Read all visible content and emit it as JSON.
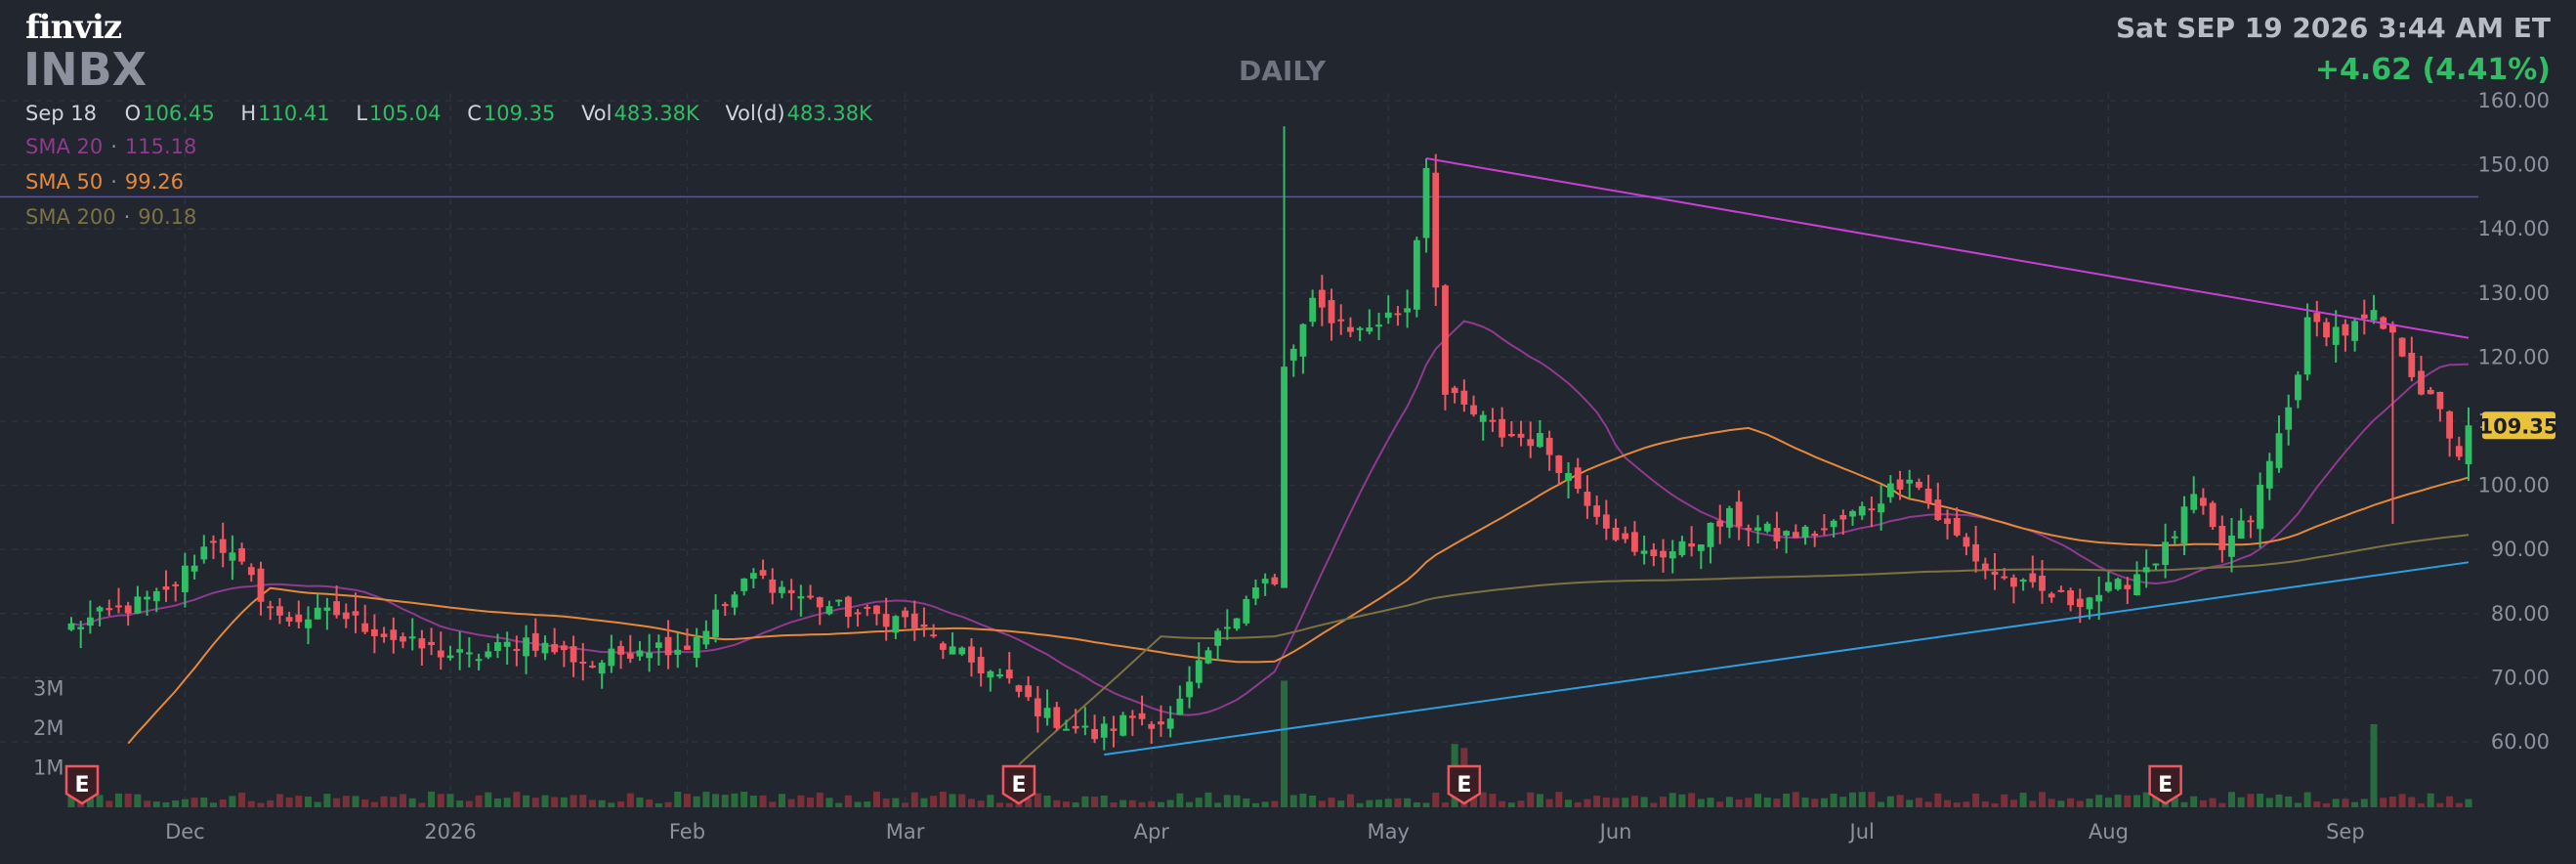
{
  "header": {
    "logo": "finviz",
    "ticker": "INBX",
    "period": "DAILY",
    "datetime": "Sat SEP 19 2026 3:44 AM ET",
    "change": "+4.62 (4.41%)"
  },
  "ohlc": {
    "date": "Sep 18",
    "o_label": "O",
    "o": "106.45",
    "h_label": "H",
    "h": "110.41",
    "l_label": "L",
    "l": "105.04",
    "c_label": "C",
    "c": "109.35",
    "vol_label": "Vol",
    "vol": "483.38K",
    "vold_label": "Vol(d)",
    "vold": "483.38K"
  },
  "sma": [
    {
      "label": "SMA 20",
      "value": "115.18",
      "color": "#8e3a8e"
    },
    {
      "label": "SMA 50",
      "value": "99.26",
      "color": "#e6883a"
    },
    {
      "label": "SMA 200",
      "value": "90.18",
      "color": "#7d7244"
    }
  ],
  "colors": {
    "up": "#2fbe64",
    "down": "#f0565f",
    "background": "#22262f",
    "resistance_line": "#c83fd1",
    "support_line": "#2e9fe0",
    "horizontal_line": "#5b4fc4",
    "last_price_badge": "#e8c23a"
  },
  "chart_data": {
    "type": "candlestick",
    "y_axis": {
      "min": 50,
      "max": 160,
      "ticks": [
        "60.00",
        "70.00",
        "80.00",
        "90.00",
        "100.00",
        "110.00",
        "120.00",
        "130.00",
        "140.00",
        "150.00",
        "160.00"
      ]
    },
    "volume_axis_labels": [
      "1M",
      "2M",
      "3M"
    ],
    "x_labels": [
      "Dec",
      "2026",
      "Feb",
      "Mar",
      "Apr",
      "May",
      "Jun",
      "Jul",
      "Aug",
      "Sep"
    ],
    "x_label_index": [
      12,
      40,
      65,
      88,
      114,
      139,
      163,
      189,
      215,
      240
    ],
    "last_price": "109.35",
    "last_price_value": 109.35,
    "earnings_marker": "E",
    "earnings_index": [
      0,
      100,
      147,
      221
    ],
    "horizontal_line_value": 145,
    "trend_lines": [
      {
        "from": [
          143,
          151
        ],
        "to": [
          253,
          123
        ]
      },
      {
        "from": [
          109,
          58
        ],
        "to": [
          253,
          88
        ]
      }
    ],
    "price_waypoints": [
      [
        0,
        78
      ],
      [
        6,
        81
      ],
      [
        10,
        83
      ],
      [
        15,
        92
      ],
      [
        18,
        87
      ],
      [
        22,
        79
      ],
      [
        28,
        80
      ],
      [
        36,
        75
      ],
      [
        42,
        73
      ],
      [
        48,
        76
      ],
      [
        55,
        72
      ],
      [
        60,
        75
      ],
      [
        65,
        75
      ],
      [
        72,
        86
      ],
      [
        78,
        82
      ],
      [
        83,
        80
      ],
      [
        88,
        79
      ],
      [
        93,
        74
      ],
      [
        98,
        70
      ],
      [
        103,
        64
      ],
      [
        108,
        61
      ],
      [
        112,
        64
      ],
      [
        116,
        63
      ],
      [
        120,
        74
      ],
      [
        124,
        83
      ],
      [
        126,
        85
      ],
      [
        127,
        84
      ],
      [
        128,
        118
      ],
      [
        131,
        128
      ],
      [
        136,
        124
      ],
      [
        141,
        128
      ],
      [
        143,
        150
      ],
      [
        145,
        114
      ],
      [
        151,
        108
      ],
      [
        155,
        107
      ],
      [
        160,
        98
      ],
      [
        165,
        89
      ],
      [
        170,
        90
      ],
      [
        175,
        95
      ],
      [
        180,
        92
      ],
      [
        185,
        93
      ],
      [
        190,
        97
      ],
      [
        194,
        102
      ],
      [
        197,
        95
      ],
      [
        202,
        87
      ],
      [
        206,
        84
      ],
      [
        211,
        82
      ],
      [
        216,
        84
      ],
      [
        221,
        90
      ],
      [
        224,
        98
      ],
      [
        227,
        90
      ],
      [
        230,
        95
      ],
      [
        234,
        112
      ],
      [
        236,
        125
      ],
      [
        240,
        124
      ],
      [
        243,
        126
      ],
      [
        246,
        121
      ],
      [
        248,
        115
      ],
      [
        250,
        111
      ],
      [
        252,
        105
      ],
      [
        253,
        109.35
      ]
    ],
    "volume_spikes": [
      [
        128,
        3.2
      ],
      [
        146,
        1.6
      ],
      [
        147,
        1.5
      ],
      [
        243,
        2.1
      ]
    ],
    "series": [
      {
        "name": "SMA 20",
        "type": "line"
      },
      {
        "name": "SMA 50",
        "type": "line"
      },
      {
        "name": "SMA 200",
        "type": "line"
      }
    ]
  }
}
